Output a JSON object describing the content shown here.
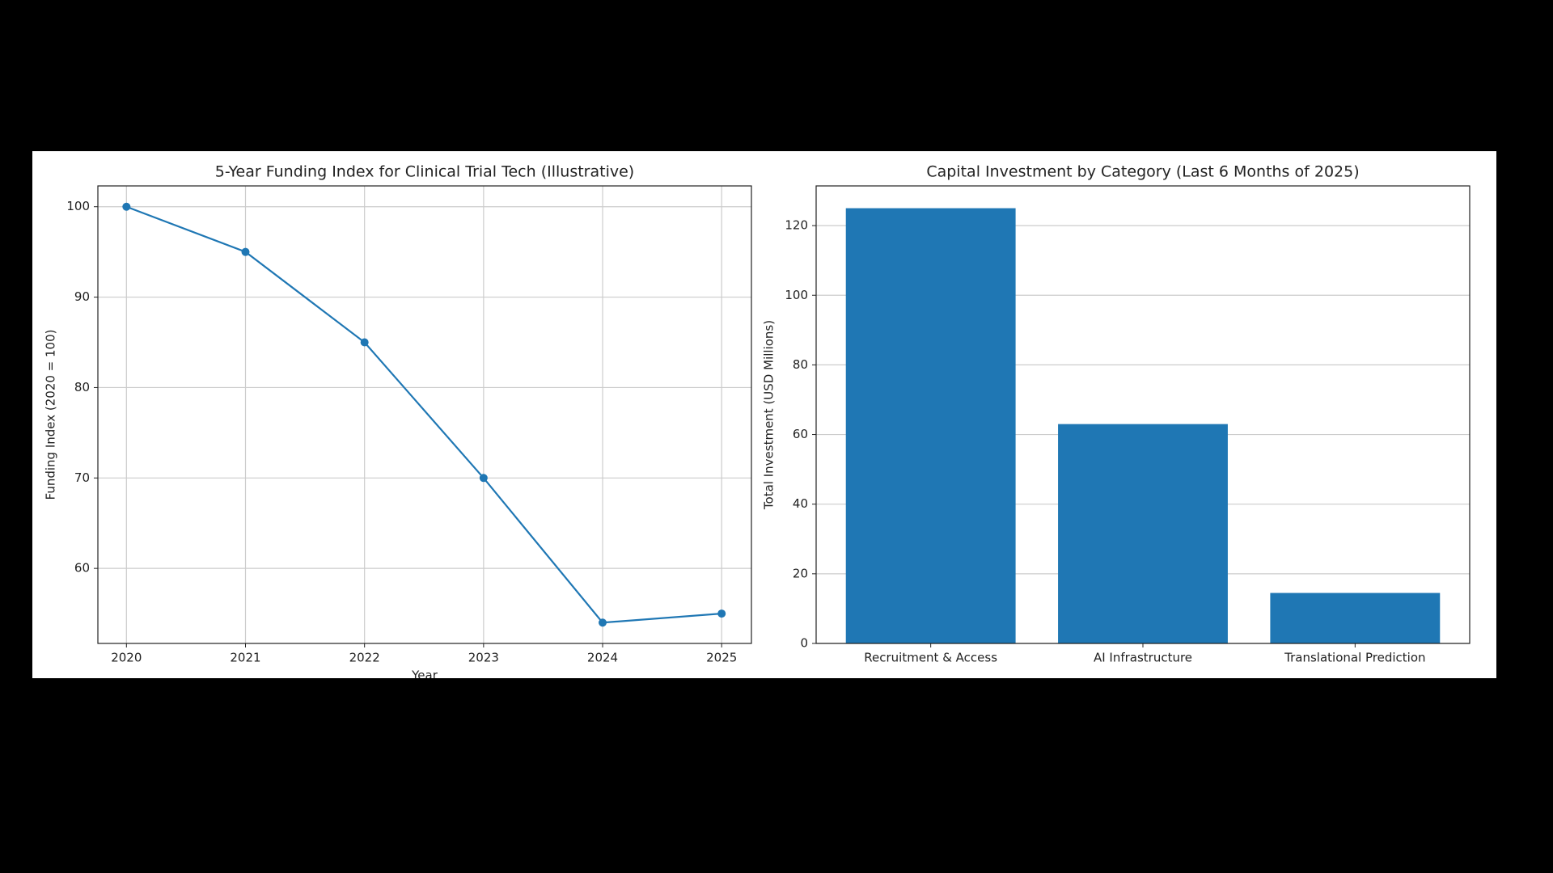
{
  "chart_data": [
    {
      "type": "line",
      "title": "5-Year Funding Index for Clinical Trial Tech (Illustrative)",
      "x_label": "Year",
      "y_label": "Funding Index (2020 = 100)",
      "x": [
        2020,
        2021,
        2022,
        2023,
        2024,
        2025
      ],
      "values": [
        100,
        95,
        85,
        70,
        54,
        55
      ],
      "color": "#1f77b4",
      "xlim": [
        2019.76,
        2025.25
      ],
      "xticks": [
        2020,
        2021,
        2022,
        2023,
        2024,
        2025
      ],
      "ylim": [
        51.7,
        102.3
      ],
      "yticks": [
        60,
        70,
        80,
        90,
        100
      ],
      "grid": "both"
    },
    {
      "type": "bar",
      "title": "Capital Investment by Category (Last 6 Months of 2025)",
      "y_label": "Total Investment (USD Millions)",
      "categories": [
        "Recruitment & Access",
        "AI Infrastructure",
        "Translational Prediction"
      ],
      "values": [
        125,
        63,
        14.5
      ],
      "color": "#1f77b4",
      "ylim": [
        0,
        131.4
      ],
      "yticks": [
        0,
        20,
        40,
        60,
        80,
        100,
        120
      ],
      "grid": "y"
    }
  ]
}
